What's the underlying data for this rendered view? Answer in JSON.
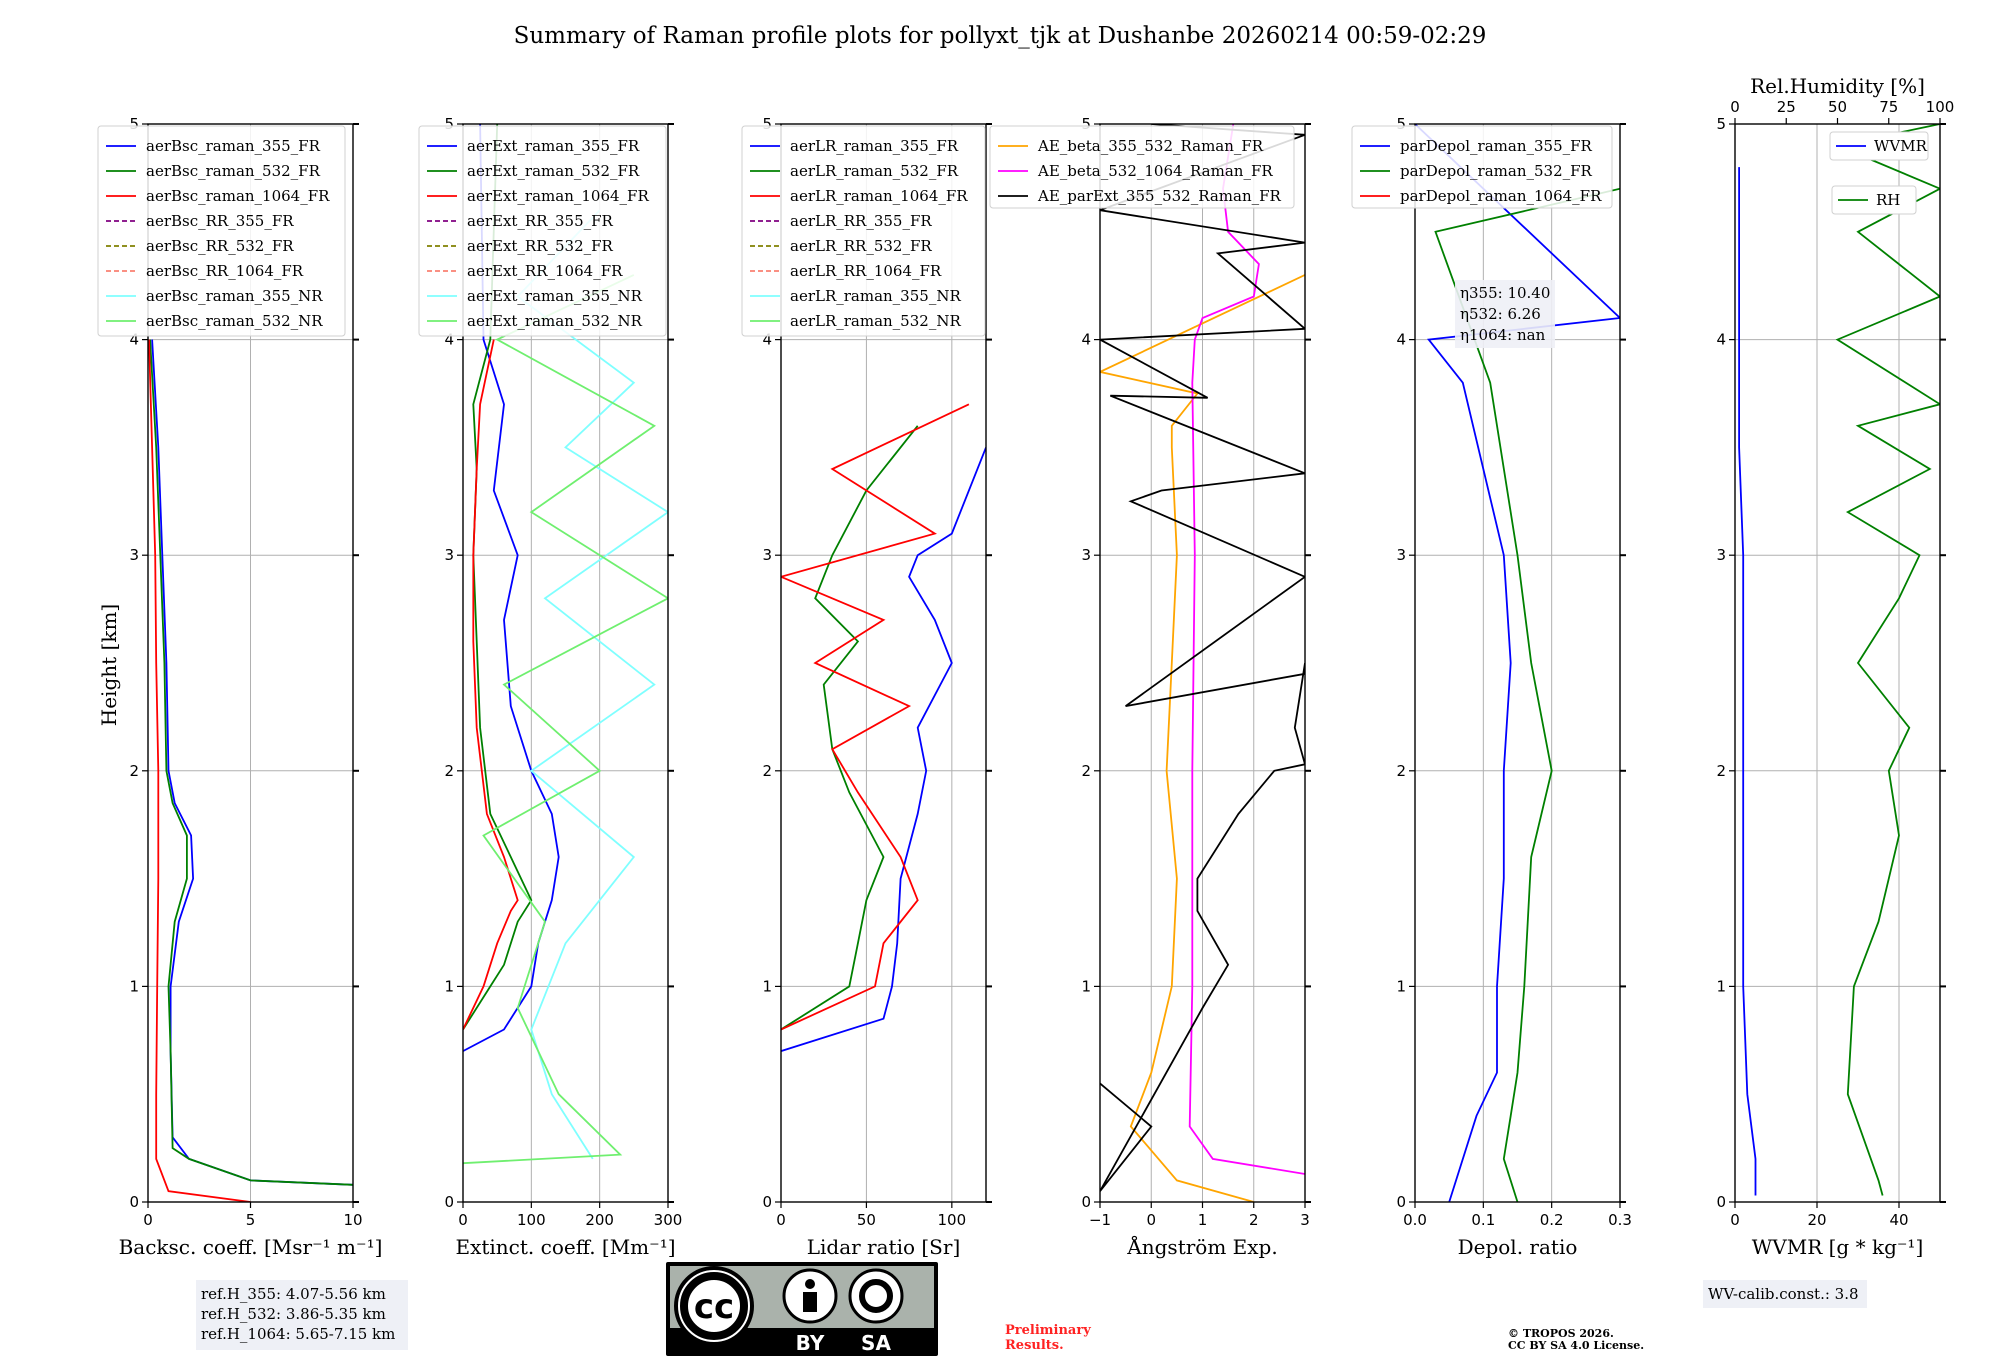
{
  "title": "Summary of Raman profile plots for pollyxt_tjk at Dushanbe 20260214 00:59-02:29",
  "y_axis_label": "Height [km]",
  "y_ticks": [
    "0",
    "1",
    "2",
    "3",
    "4",
    "5"
  ],
  "colors": {
    "blue": "#0000ff",
    "green": "#008000",
    "red": "#ff0000",
    "purple": "#800080",
    "olive": "#808000",
    "salmon": "#fa8072",
    "cyan": "#7fffff",
    "lightgreen": "#6fef6f",
    "orange": "#ffa500",
    "magenta": "#ff00ff",
    "black": "#000000"
  },
  "chart_data": [
    {
      "type": "line",
      "id": "bsc",
      "xlabel": "Backsc. coeff. [Msr⁻¹ m⁻¹]",
      "xlim": [
        0,
        10
      ],
      "ylim": [
        0,
        5
      ],
      "xticks": [
        "0",
        "5",
        "10"
      ],
      "xtickvals": [
        0,
        5,
        10
      ],
      "series": [
        {
          "name": "aerBsc_raman_355_FR",
          "color": "blue",
          "style": "solid",
          "x": [
            10,
            5,
            2,
            1.2,
            1.1,
            1.1,
            1.5,
            2.2,
            2.1,
            1.3,
            1.0,
            0.9,
            0.7,
            0.5,
            0.2
          ],
          "y": [
            0.08,
            0.1,
            0.2,
            0.3,
            0.7,
            1.0,
            1.3,
            1.5,
            1.7,
            1.85,
            2.0,
            2.5,
            3.0,
            3.5,
            4.0
          ]
        },
        {
          "name": "aerBsc_raman_532_FR",
          "color": "green",
          "style": "solid",
          "x": [
            10,
            5,
            2,
            1.2,
            1.1,
            1.0,
            1.3,
            1.9,
            1.9,
            1.2,
            0.9,
            0.8,
            0.6,
            0.4,
            0.1
          ],
          "y": [
            0.08,
            0.1,
            0.2,
            0.25,
            0.7,
            1.0,
            1.3,
            1.5,
            1.7,
            1.85,
            2.0,
            2.5,
            3.0,
            3.5,
            4.0
          ]
        },
        {
          "name": "aerBsc_raman_1064_FR",
          "color": "red",
          "style": "solid",
          "x": [
            5,
            1,
            0.4,
            0.4,
            0.45,
            0.5,
            0.5,
            0.4,
            0.35,
            0.2,
            0.05
          ],
          "y": [
            0.0,
            0.05,
            0.2,
            0.5,
            1.0,
            1.5,
            2.0,
            2.5,
            3.0,
            3.5,
            4.0
          ]
        },
        {
          "name": "aerBsc_RR_355_FR",
          "color": "purple",
          "style": "dashed",
          "x": [],
          "y": []
        },
        {
          "name": "aerBsc_RR_532_FR",
          "color": "olive",
          "style": "dashed",
          "x": [],
          "y": []
        },
        {
          "name": "aerBsc_RR_1064_FR",
          "color": "salmon",
          "style": "dashed",
          "x": [],
          "y": []
        },
        {
          "name": "aerBsc_raman_355_NR",
          "color": "cyan",
          "style": "solid",
          "x": [],
          "y": []
        },
        {
          "name": "aerBsc_raman_532_NR",
          "color": "lightgreen",
          "style": "solid",
          "x": [],
          "y": []
        }
      ],
      "annotation": [
        "ref.H_355: 4.07-5.56 km",
        "ref.H_532: 3.86-5.35 km",
        "ref.H_1064: 5.65-7.15 km"
      ]
    },
    {
      "type": "line",
      "id": "ext",
      "xlabel": "Extinct. coeff. [Mm⁻¹]",
      "xlim": [
        0,
        300
      ],
      "ylim": [
        0,
        5
      ],
      "xticks": [
        "0",
        "100",
        "200",
        "300"
      ],
      "xtickvals": [
        0,
        100,
        200,
        300
      ],
      "series": [
        {
          "name": "aerExt_raman_355_FR",
          "color": "blue",
          "style": "solid",
          "x": [
            0,
            60,
            100,
            110,
            130,
            140,
            130,
            100,
            70,
            60,
            80,
            45,
            60,
            30,
            25
          ],
          "y": [
            0.7,
            0.8,
            1.0,
            1.2,
            1.4,
            1.6,
            1.8,
            2.0,
            2.3,
            2.7,
            3.0,
            3.3,
            3.7,
            4.0,
            5.0
          ]
        },
        {
          "name": "aerExt_raman_532_FR",
          "color": "green",
          "style": "solid",
          "x": [
            0,
            40,
            60,
            80,
            100,
            70,
            40,
            25,
            20,
            15,
            20,
            15,
            40,
            50
          ],
          "y": [
            0.8,
            1.0,
            1.1,
            1.3,
            1.4,
            1.6,
            1.8,
            2.2,
            2.6,
            3.0,
            3.4,
            3.7,
            4.0,
            5.0
          ]
        },
        {
          "name": "aerExt_raman_1064_FR",
          "color": "red",
          "style": "solid",
          "x": [
            0,
            30,
            50,
            70,
            80,
            60,
            35,
            20,
            15,
            15,
            20,
            25,
            45
          ],
          "y": [
            0.8,
            1.0,
            1.2,
            1.35,
            1.4,
            1.6,
            1.8,
            2.2,
            2.6,
            3.0,
            3.4,
            3.7,
            4.0
          ]
        },
        {
          "name": "aerExt_RR_355_FR",
          "color": "purple",
          "style": "dashed",
          "x": [],
          "y": []
        },
        {
          "name": "aerExt_RR_532_FR",
          "color": "olive",
          "style": "dashed",
          "x": [],
          "y": []
        },
        {
          "name": "aerExt_RR_1064_FR",
          "color": "salmon",
          "style": "dashed",
          "x": [],
          "y": []
        },
        {
          "name": "aerExt_raman_355_NR",
          "color": "cyan",
          "style": "solid",
          "x": [
            190,
            130,
            100,
            150,
            250,
            100,
            280,
            120,
            300,
            150,
            250,
            80,
            200
          ],
          "y": [
            0.2,
            0.5,
            0.8,
            1.2,
            1.6,
            2.0,
            2.4,
            2.8,
            3.2,
            3.5,
            3.8,
            4.2,
            4.6
          ]
        },
        {
          "name": "aerExt_raman_532_NR",
          "color": "lightgreen",
          "style": "solid",
          "x": [
            0,
            230,
            140,
            80,
            120,
            30,
            200,
            60,
            300,
            100,
            280,
            50,
            250
          ],
          "y": [
            0.18,
            0.22,
            0.5,
            0.9,
            1.3,
            1.7,
            2.0,
            2.4,
            2.8,
            3.2,
            3.6,
            4.0,
            4.3
          ]
        }
      ]
    },
    {
      "type": "line",
      "id": "lr",
      "xlabel": "Lidar ratio [Sr]",
      "xlim": [
        0,
        120
      ],
      "ylim": [
        0,
        5
      ],
      "xticks": [
        "0",
        "50",
        "100"
      ],
      "xtickvals": [
        0,
        50,
        100
      ],
      "series": [
        {
          "name": "aerLR_raman_355_FR",
          "color": "blue",
          "style": "solid",
          "x": [
            0,
            60,
            65,
            68,
            70,
            80,
            85,
            80,
            100,
            90,
            75,
            80,
            100,
            120
          ],
          "y": [
            0.7,
            0.85,
            1.0,
            1.2,
            1.5,
            1.8,
            2.0,
            2.2,
            2.5,
            2.7,
            2.9,
            3.0,
            3.1,
            3.5
          ]
        },
        {
          "name": "aerLR_raman_532_FR",
          "color": "green",
          "style": "solid",
          "x": [
            0,
            40,
            45,
            50,
            60,
            40,
            30,
            25,
            45,
            20,
            30,
            50,
            80
          ],
          "y": [
            0.8,
            1.0,
            1.2,
            1.4,
            1.6,
            1.9,
            2.1,
            2.4,
            2.6,
            2.8,
            3.0,
            3.3,
            3.6
          ]
        },
        {
          "name": "aerLR_raman_1064_FR",
          "color": "red",
          "style": "solid",
          "x": [
            0,
            55,
            60,
            80,
            70,
            45,
            30,
            75,
            20,
            60,
            0,
            90,
            30,
            110
          ],
          "y": [
            0.8,
            1.0,
            1.2,
            1.4,
            1.6,
            1.9,
            2.1,
            2.3,
            2.5,
            2.7,
            2.9,
            3.1,
            3.4,
            3.7
          ]
        },
        {
          "name": "aerLR_RR_355_FR",
          "color": "purple",
          "style": "dashed",
          "x": [],
          "y": []
        },
        {
          "name": "aerLR_RR_532_FR",
          "color": "olive",
          "style": "dashed",
          "x": [],
          "y": []
        },
        {
          "name": "aerLR_RR_1064_FR",
          "color": "salmon",
          "style": "dashed",
          "x": [],
          "y": []
        },
        {
          "name": "aerLR_raman_355_NR",
          "color": "cyan",
          "style": "solid",
          "x": [],
          "y": []
        },
        {
          "name": "aerLR_raman_532_NR",
          "color": "lightgreen",
          "style": "solid",
          "x": [],
          "y": []
        }
      ]
    },
    {
      "type": "line",
      "id": "ae",
      "xlabel": "Ångström Exp.",
      "xlim": [
        -1,
        3
      ],
      "ylim": [
        0,
        5
      ],
      "xticks": [
        "−1",
        "0",
        "1",
        "2",
        "3"
      ],
      "xtickvals": [
        -1,
        0,
        1,
        2,
        3
      ],
      "series": [
        {
          "name": "AE_beta_355_532_Raman_FR",
          "color": "orange",
          "style": "solid",
          "x": [
            2,
            0.5,
            -0.4,
            0,
            0.4,
            0.5,
            0.3,
            0.4,
            0.5,
            0.4,
            0.4,
            0.9,
            -1,
            3
          ],
          "y": [
            0.0,
            0.1,
            0.35,
            0.6,
            1.0,
            1.5,
            2.0,
            2.5,
            3.0,
            3.5,
            3.6,
            3.75,
            3.85,
            4.3
          ]
        },
        {
          "name": "AE_beta_532_1064_Raman_FR",
          "color": "magenta",
          "style": "solid",
          "x": [
            3,
            1.2,
            0.75,
            0.8,
            0.8,
            0.85,
            0.8,
            0.85,
            1.0,
            2.0,
            2.1,
            1.5,
            1.4,
            1.6
          ],
          "y": [
            0.13,
            0.2,
            0.35,
            1.0,
            2.0,
            3.0,
            3.8,
            4.0,
            4.1,
            4.2,
            4.35,
            4.5,
            4.7,
            5.0
          ]
        },
        {
          "name": "AE_parExt_355_532_Raman_FR",
          "color": "black",
          "style": "solid",
          "x": [
            -1,
            0,
            -1,
            1.0,
            1.5,
            0.9,
            0.9,
            1.7,
            2.4,
            3,
            2.8,
            3,
            3,
            -0.5,
            3,
            -0.4,
            0.2,
            3,
            -0.8,
            1.1,
            -1,
            3,
            1.3,
            3,
            -1,
            3,
            0
          ],
          "y": [
            0.55,
            0.35,
            0.05,
            0.9,
            1.1,
            1.35,
            1.5,
            1.8,
            2.0,
            2.03,
            2.2,
            2.5,
            2.45,
            2.3,
            2.9,
            3.25,
            3.3,
            3.38,
            3.74,
            3.73,
            4.0,
            4.05,
            4.4,
            4.45,
            4.6,
            4.95,
            5.0
          ]
        }
      ]
    },
    {
      "type": "line",
      "id": "depol",
      "xlabel": "Depol. ratio",
      "xlim": [
        0,
        0.3
      ],
      "ylim": [
        0,
        5
      ],
      "xticks": [
        "0.0",
        "0.1",
        "0.2",
        "0.3"
      ],
      "xtickvals": [
        0,
        0.1,
        0.2,
        0.3
      ],
      "series": [
        {
          "name": "parDepol_raman_355_FR",
          "color": "blue",
          "style": "solid",
          "x": [
            0.05,
            0.09,
            0.12,
            0.12,
            0.13,
            0.13,
            0.14,
            0.13,
            0.07,
            0.02,
            0.3,
            0.0
          ],
          "y": [
            0.0,
            0.4,
            0.6,
            1.0,
            1.5,
            2.0,
            2.5,
            3.0,
            3.8,
            4.0,
            4.1,
            5.0
          ]
        },
        {
          "name": "parDepol_raman_532_FR",
          "color": "green",
          "style": "solid",
          "x": [
            0.15,
            0.13,
            0.14,
            0.15,
            0.16,
            0.17,
            0.2,
            0.17,
            0.15,
            0.11,
            0.03,
            0.3
          ],
          "y": [
            0.0,
            0.2,
            0.4,
            0.6,
            1.0,
            1.6,
            2.0,
            2.5,
            3.0,
            3.8,
            4.5,
            4.7
          ]
        },
        {
          "name": "parDepol_raman_1064_FR",
          "color": "red",
          "style": "solid",
          "x": [],
          "y": []
        }
      ],
      "annotation": [
        "η355: 10.40",
        "η532: 6.26",
        "η1064: nan"
      ]
    },
    {
      "type": "line",
      "id": "wv",
      "xlabel": "WVMR [g * kg⁻¹]",
      "xlim": [
        0,
        50
      ],
      "ylim": [
        0,
        5
      ],
      "xticks": [
        "0",
        "20",
        "40"
      ],
      "xtickvals": [
        0,
        20,
        40
      ],
      "top_axis": {
        "label": "Rel.Humidity [%]",
        "ticks": [
          "0",
          "25",
          "50",
          "75",
          "100"
        ],
        "tickvals": [
          0,
          25,
          50,
          75,
          100
        ],
        "range": [
          0,
          100
        ]
      },
      "series": [
        {
          "name": "WVMR",
          "color": "blue",
          "style": "solid",
          "x": [
            5,
            5,
            3,
            2,
            2,
            2,
            2,
            1,
            1,
            1
          ],
          "y": [
            0.03,
            0.2,
            0.5,
            1.0,
            2.0,
            2.6,
            3.0,
            3.5,
            4.0,
            4.8
          ]
        },
        {
          "name": "RH",
          "color": "green",
          "style": "solid",
          "axis": "top",
          "x": [
            72,
            70,
            55,
            58,
            70,
            75,
            80,
            75,
            85,
            60,
            80,
            90,
            55,
            95,
            60,
            100,
            50,
            100,
            60,
            100,
            50,
            100
          ],
          "y": [
            0.03,
            0.1,
            0.5,
            1.0,
            1.3,
            1.5,
            1.7,
            2.0,
            2.2,
            2.5,
            2.8,
            3.0,
            3.2,
            3.4,
            3.6,
            3.7,
            4.0,
            4.2,
            4.5,
            4.7,
            4.9,
            5.0
          ]
        }
      ],
      "annotation": [
        "WV-calib.const.: 3.8"
      ]
    }
  ],
  "license": {
    "by": "BY",
    "sa": "SA",
    "cc": "cc"
  },
  "preliminary": [
    "Preliminary",
    "Results."
  ],
  "copyright": [
    "© TROPOS 2026.",
    "CC BY SA 4.0 License."
  ]
}
